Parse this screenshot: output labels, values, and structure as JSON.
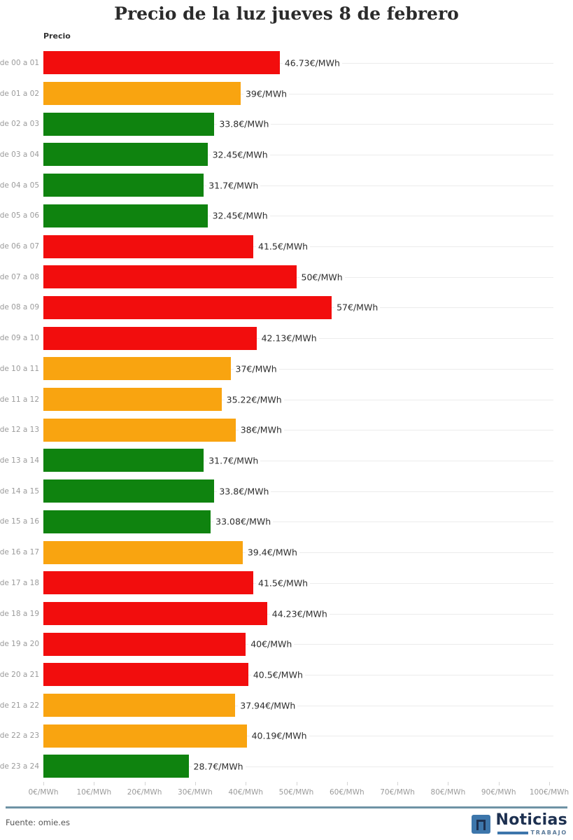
{
  "title": "Precio de la luz jueves 8 de febrero",
  "axis_title": "Precio",
  "source": "Fuente: omie.es",
  "logo": {
    "name": "Noticias",
    "tagline": "TRABAJO"
  },
  "colors": {
    "red": "#f20d0d",
    "orange": "#f9a410",
    "green": "#0f830f",
    "grid": "#ececec",
    "separator": "#6e93a5",
    "logo_blue": "#3d76ab",
    "logo_navy": "#1d3050"
  },
  "chart_data": {
    "type": "bar",
    "orientation": "horizontal",
    "title": "Precio de la luz jueves 8 de febrero",
    "ylabel": "Precio",
    "xlim": [
      0,
      100
    ],
    "grid": "horizontal-row-lines",
    "x_ticks": [
      "0€/MWh",
      "10€/MWh",
      "20€/MWh",
      "30€/MWh",
      "40€/MWh",
      "50€/MWh",
      "60€/MWh",
      "70€/MWh",
      "80€/MWh",
      "90€/MWh",
      "100€/MWh"
    ],
    "categories": [
      "de 00 a 01",
      "de 01 a 02",
      "de 02 a 03",
      "de 03 a 04",
      "de 04 a 05",
      "de 05 a 06",
      "de 06 a 07",
      "de 07 a 08",
      "de 08 a 09",
      "de 09 a 10",
      "de 10 a 11",
      "de 11 a 12",
      "de 12 a 13",
      "de 13 a 14",
      "de 14 a 15",
      "de 15 a 16",
      "de 16 a 17",
      "de 17 a 18",
      "de 18 a 19",
      "de 19 a 20",
      "de 20 a 21",
      "de 21 a 22",
      "de 22 a 23",
      "de 23 a 24"
    ],
    "values": [
      46.73,
      39,
      33.8,
      32.45,
      31.7,
      32.45,
      41.5,
      50,
      57,
      42.13,
      37,
      35.22,
      38,
      31.7,
      33.8,
      33.08,
      39.4,
      41.5,
      44.23,
      40,
      40.5,
      37.94,
      40.19,
      28.7
    ],
    "value_labels": [
      "46.73€/MWh",
      "39€/MWh",
      "33.8€/MWh",
      "32.45€/MWh",
      "31.7€/MWh",
      "32.45€/MWh",
      "41.5€/MWh",
      "50€/MWh",
      "57€/MWh",
      "42.13€/MWh",
      "37€/MWh",
      "35.22€/MWh",
      "38€/MWh",
      "31.7€/MWh",
      "33.8€/MWh",
      "33.08€/MWh",
      "39.4€/MWh",
      "41.5€/MWh",
      "44.23€/MWh",
      "40€/MWh",
      "40.5€/MWh",
      "37.94€/MWh",
      "40.19€/MWh",
      "28.7€/MWh"
    ],
    "levels": [
      "red",
      "orange",
      "green",
      "green",
      "green",
      "green",
      "red",
      "red",
      "red",
      "red",
      "orange",
      "orange",
      "orange",
      "green",
      "green",
      "green",
      "orange",
      "red",
      "red",
      "red",
      "red",
      "orange",
      "orange",
      "green"
    ]
  }
}
